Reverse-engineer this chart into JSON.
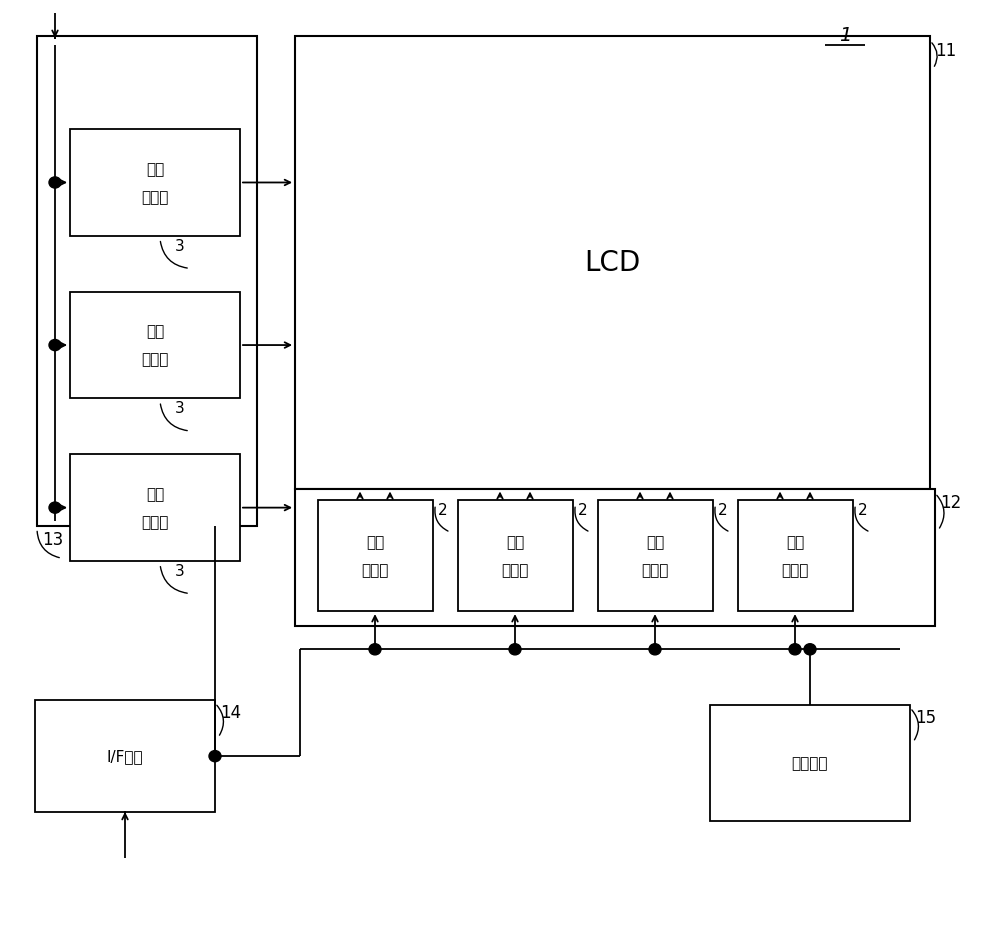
{
  "bg_color": "#ffffff",
  "line_color": "#000000",
  "text_color": "#000000",
  "title_label": "1",
  "lcd_label": "LCD",
  "label_11": "11",
  "label_12": "12",
  "label_13": "13",
  "label_14": "14",
  "label_15": "15",
  "gate_driver_line1": "栊极",
  "gate_driver_line2": "驱动器",
  "source_driver_line1": "源极",
  "source_driver_line2": "驱动器",
  "gate_number_label": "3",
  "source_number_label": "2",
  "if_circuit_label": "I/F电路",
  "power_label": "分级电源",
  "font_size_main": 11,
  "font_size_label": 12,
  "font_size_number": 11,
  "font_size_lcd": 20
}
